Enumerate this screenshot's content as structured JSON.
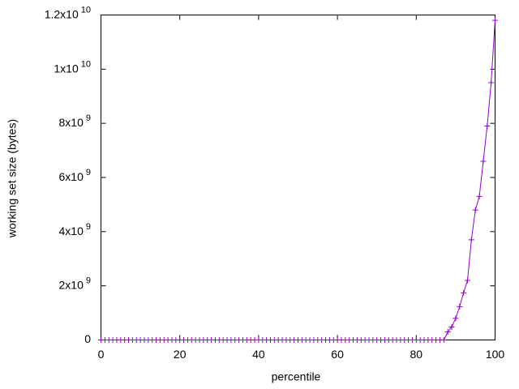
{
  "chart_data": {
    "type": "line",
    "xlabel": "percentile",
    "ylabel": "working set size (bytes)",
    "x": [
      0,
      1,
      2,
      3,
      4,
      5,
      6,
      7,
      8,
      9,
      10,
      11,
      12,
      13,
      14,
      15,
      16,
      17,
      18,
      19,
      20,
      21,
      22,
      23,
      24,
      25,
      26,
      27,
      28,
      29,
      30,
      31,
      32,
      33,
      34,
      35,
      36,
      37,
      38,
      39,
      40,
      41,
      42,
      43,
      44,
      45,
      46,
      47,
      48,
      49,
      50,
      51,
      52,
      53,
      54,
      55,
      56,
      57,
      58,
      59,
      60,
      61,
      62,
      63,
      64,
      65,
      66,
      67,
      68,
      69,
      70,
      71,
      72,
      73,
      74,
      75,
      76,
      77,
      78,
      79,
      80,
      81,
      82,
      83,
      84,
      85,
      86,
      87,
      88,
      89,
      90,
      91,
      92,
      93,
      94,
      95,
      96,
      97,
      98,
      99,
      100
    ],
    "series": [
      {
        "color": "#9400d3",
        "values": [
          0,
          0,
          0,
          0,
          0,
          0,
          0,
          0,
          0,
          0,
          0,
          0,
          0,
          0,
          0,
          0,
          0,
          0,
          0,
          0,
          0,
          0,
          0,
          0,
          0,
          0,
          0,
          0,
          0,
          0,
          0,
          0,
          0,
          0,
          0,
          0,
          0,
          0,
          0,
          0,
          0,
          0,
          0,
          0,
          0,
          0,
          0,
          0,
          0,
          0,
          0,
          0,
          0,
          0,
          0,
          0,
          0,
          0,
          0,
          0,
          0,
          0,
          0,
          0,
          0,
          0,
          0,
          0,
          0,
          0,
          0,
          0,
          0,
          0,
          0,
          0,
          0,
          0,
          0,
          0,
          0,
          0,
          0,
          0,
          0,
          0,
          0,
          0,
          300000000,
          480000000,
          800000000,
          1230000000,
          1740000000,
          2200000000,
          3700000000,
          4800000000,
          5300000000,
          6600000000,
          7900000000,
          9500000000,
          11800000000
        ]
      }
    ],
    "xlim": [
      0,
      100
    ],
    "xticks": [
      0,
      20,
      40,
      60,
      80,
      100
    ],
    "ylim": [
      0,
      12000000000
    ],
    "yticks": [
      0,
      {
        "value": 2000000000,
        "label": "2x10",
        "exponent": "9"
      },
      {
        "value": 4000000000,
        "label": "4x10",
        "exponent": "9"
      },
      {
        "value": 6000000000,
        "label": "6x10",
        "exponent": "9"
      },
      {
        "value": 8000000000,
        "label": "8x10",
        "exponent": "9"
      },
      {
        "value": 10000000000,
        "label": "1x10",
        "exponent": "10"
      },
      {
        "value": 12000000000,
        "label": "1.2x10",
        "exponent": "10"
      }
    ],
    "grid": false
  }
}
